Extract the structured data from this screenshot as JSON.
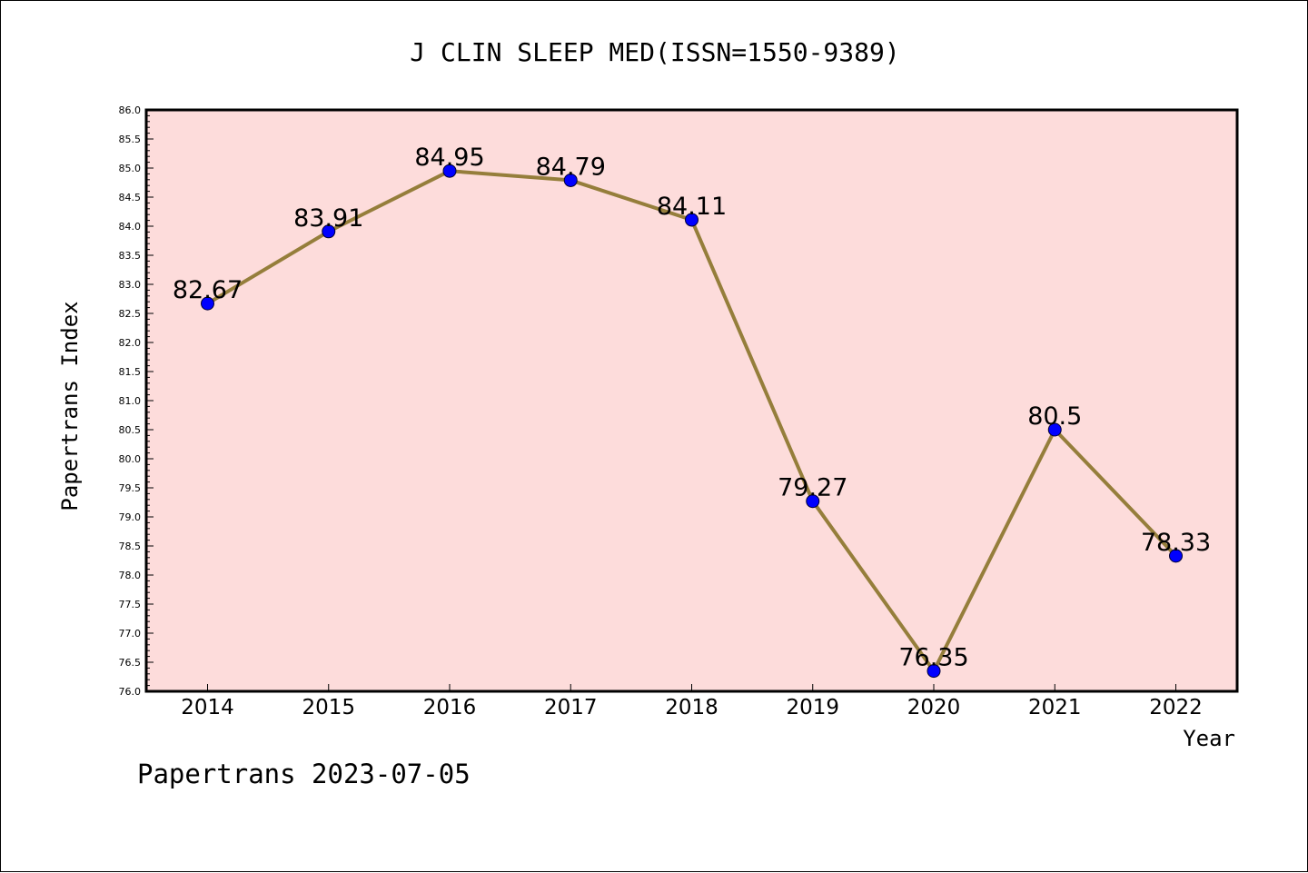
{
  "chart_data": {
    "type": "line",
    "title": "J CLIN SLEEP MED(ISSN=1550-9389)",
    "xlabel": "Year",
    "ylabel": "Papertrans Index",
    "x": [
      "2014",
      "2015",
      "2016",
      "2017",
      "2018",
      "2019",
      "2020",
      "2021",
      "2022"
    ],
    "values": [
      82.67,
      83.91,
      84.95,
      84.79,
      84.11,
      79.27,
      76.35,
      80.5,
      78.33
    ],
    "data_labels": [
      "82.67",
      "83.91",
      "84.95",
      "84.79",
      "84.11",
      "79.27",
      "76.35",
      "80.5",
      "78.33"
    ],
    "ylim": [
      76.0,
      86.0
    ],
    "y_ticks": [
      "76.0",
      "76.5",
      "77.0",
      "77.5",
      "78.0",
      "78.5",
      "79.0",
      "79.5",
      "80.0",
      "80.5",
      "81.0",
      "81.5",
      "82.0",
      "82.5",
      "83.0",
      "83.5",
      "84.0",
      "84.5",
      "85.0",
      "85.5",
      "86.0"
    ],
    "grid": false,
    "legend": "none",
    "colors": {
      "plot_background": "#fddcdb",
      "line": "#957e3b",
      "marker": "#0000ff"
    }
  },
  "footer": {
    "text": "Papertrans 2023-07-05"
  }
}
